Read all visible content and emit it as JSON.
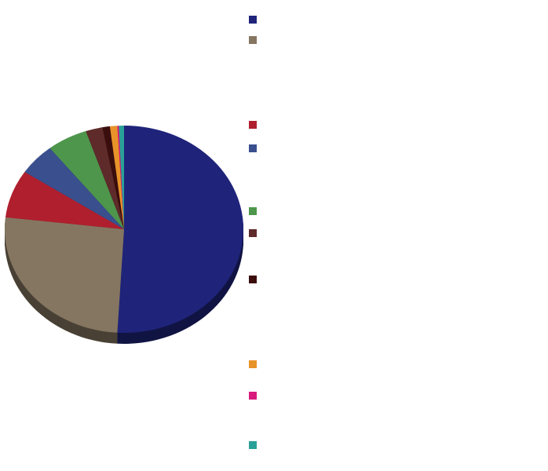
{
  "chart_data": {
    "type": "pie",
    "categories": [
      null,
      null,
      null,
      null,
      null,
      null,
      null,
      null,
      null,
      null
    ],
    "values": [
      51,
      26,
      7.5,
      5,
      5.5,
      2.3,
      1,
      1,
      0.2,
      0.7
    ],
    "colors": [
      "#1f247a",
      "#857661",
      "#b01f2e",
      "#3a4f8e",
      "#4e964c",
      "#5e2a2a",
      "#3b0d0d",
      "#e8922a",
      "#d81b7c",
      "#2aa198"
    ]
  }
}
